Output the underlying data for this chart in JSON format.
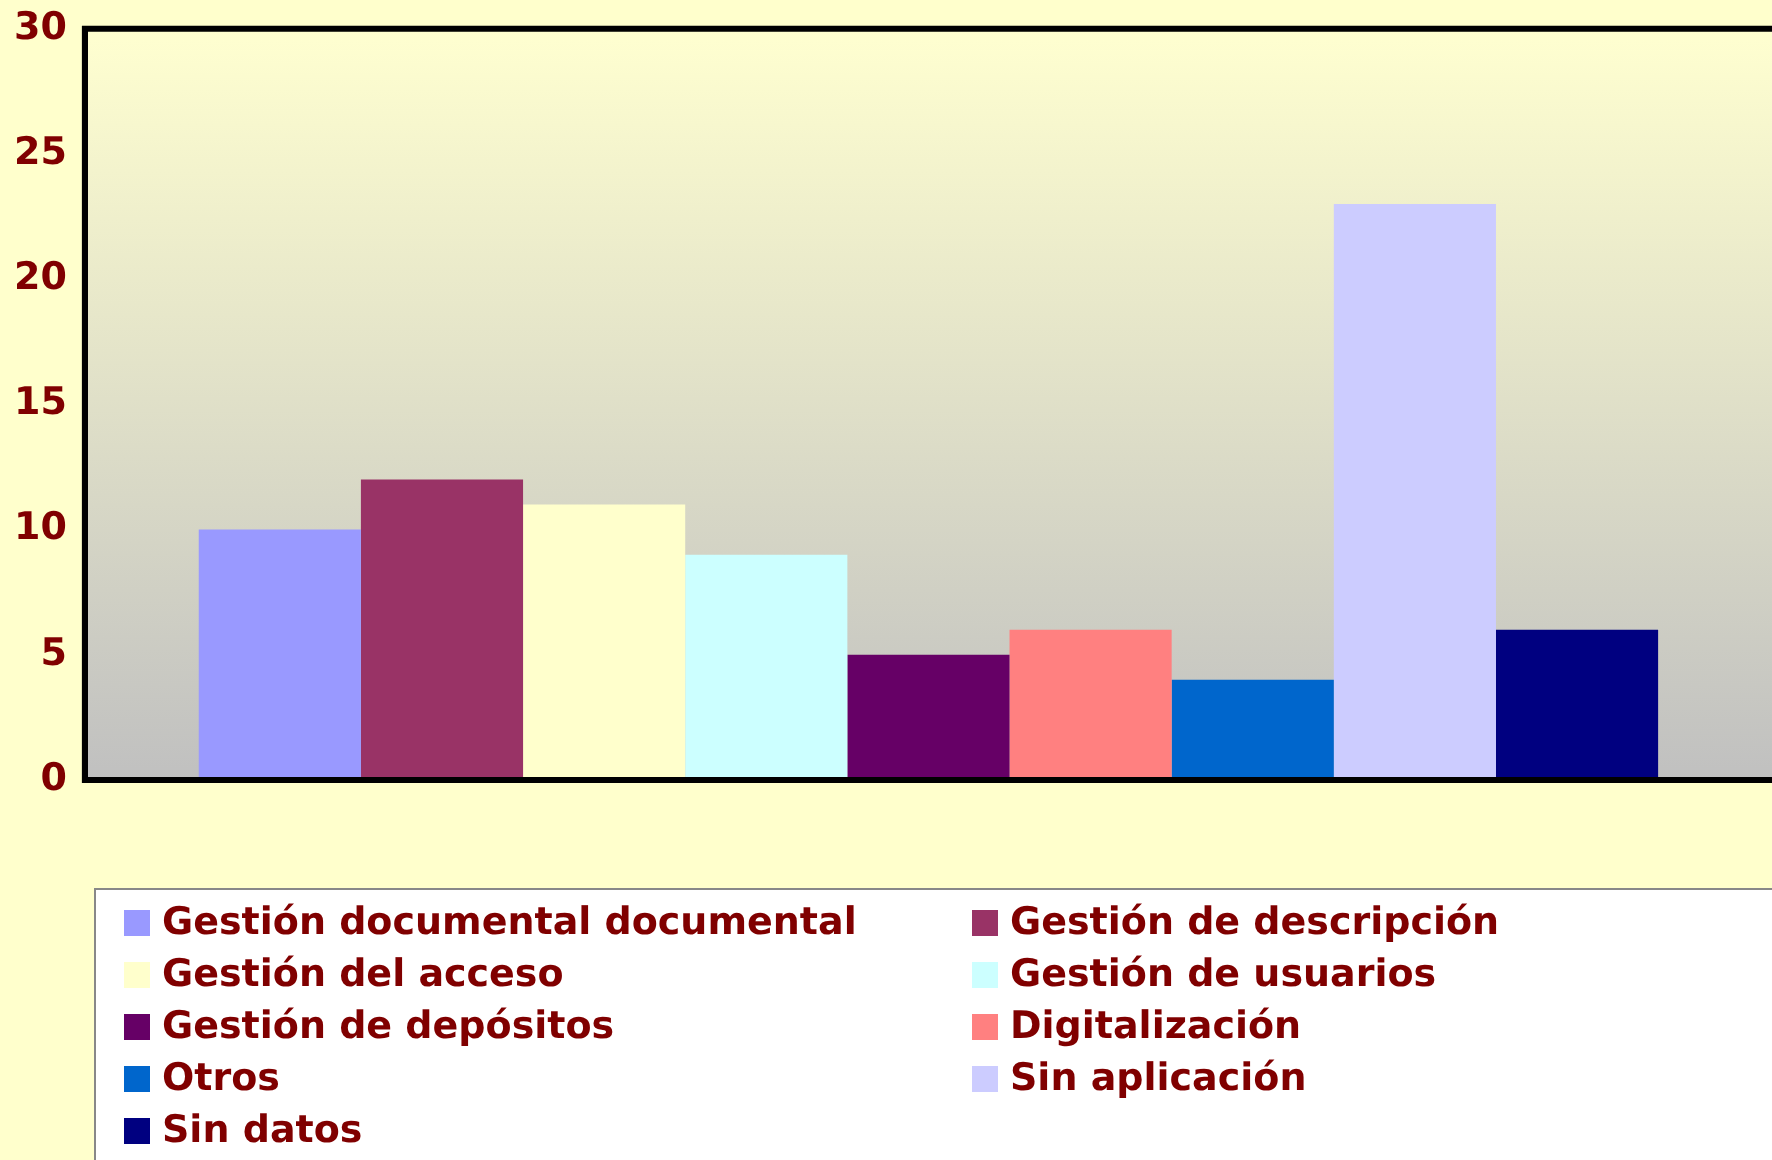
{
  "chart_data": {
    "type": "bar",
    "categories": [
      null
    ],
    "series": [
      {
        "name": "Gestión documental documental",
        "color": "#9999ff",
        "values": [
          10
        ]
      },
      {
        "name": "Gestión de descripción",
        "color": "#993366",
        "values": [
          12
        ]
      },
      {
        "name": "Gestión del acceso",
        "color": "#ffffcc",
        "values": [
          11
        ]
      },
      {
        "name": "Gestión de usuarios",
        "color": "#ccffff",
        "values": [
          9
        ]
      },
      {
        "name": "Gestión de depósitos",
        "color": "#660066",
        "values": [
          5
        ]
      },
      {
        "name": "Digitalización",
        "color": "#ff8080",
        "values": [
          6
        ]
      },
      {
        "name": "Otros",
        "color": "#0066cc",
        "values": [
          4
        ]
      },
      {
        "name": "Sin aplicación",
        "color": "#ccccff",
        "values": [
          23
        ]
      },
      {
        "name": "Sin datos",
        "color": "#000080",
        "values": [
          6
        ]
      }
    ],
    "ylim": [
      0,
      30
    ],
    "yticks": [
      0,
      5,
      10,
      15,
      20,
      25,
      30
    ],
    "grid": false,
    "legend": "bottom"
  }
}
